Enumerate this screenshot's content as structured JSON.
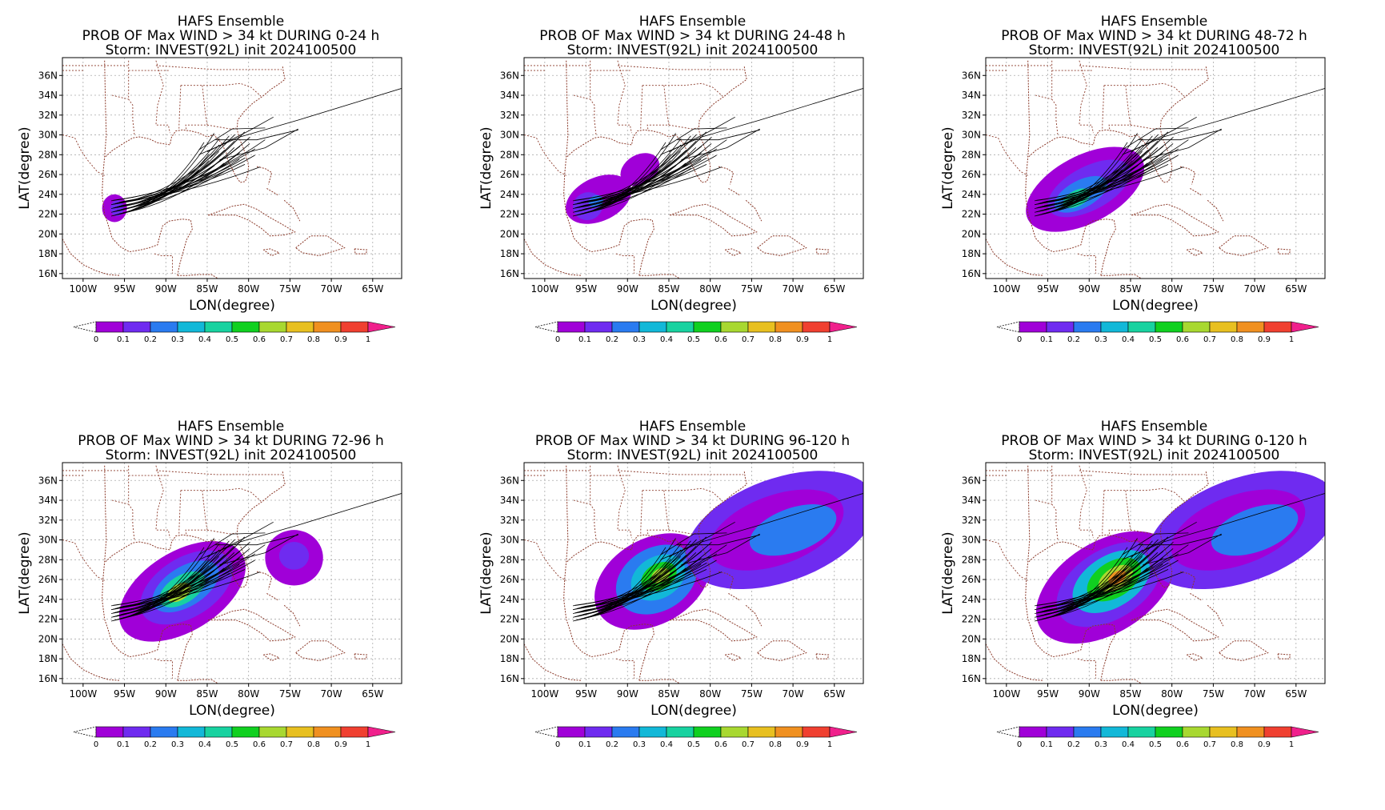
{
  "common": {
    "line1": "HAFS Ensemble",
    "line3": "Storm: INVEST(92L) init 2024100500",
    "xlabel": "LON(degree)",
    "ylabel": "LAT(degree)",
    "lon_ticks": [
      "100W",
      "95W",
      "90W",
      "85W",
      "80W",
      "75W",
      "70W",
      "65W"
    ],
    "lat_ticks": [
      "36N",
      "34N",
      "32N",
      "30N",
      "28N",
      "26N",
      "24N",
      "22N",
      "20N",
      "18N",
      "16N"
    ],
    "colorbar_labels": [
      "0",
      "0.1",
      "0.2",
      "0.3",
      "0.4",
      "0.5",
      "0.6",
      "0.7",
      "0.8",
      "0.9",
      "1"
    ],
    "colorbar_colors": [
      "#a000d8",
      "#6f2bf0",
      "#2a7bf0",
      "#12b8d8",
      "#18d2a0",
      "#10d020",
      "#a8d830",
      "#e8c020",
      "#f09020",
      "#f04030"
    ],
    "colorbar_high": "#f0208c"
  },
  "panels": [
    {
      "line2": "PROB OF Max WIND > 34 kt DURING  0-24 h",
      "stage": 0
    },
    {
      "line2": "PROB OF Max WIND > 34 kt DURING 24-48 h",
      "stage": 1
    },
    {
      "line2": "PROB OF Max WIND > 34 kt DURING 48-72 h",
      "stage": 2
    },
    {
      "line2": "PROB OF Max WIND > 34 kt DURING 72-96 h",
      "stage": 3
    },
    {
      "line2": "PROB OF Max WIND > 34 kt DURING 96-120 h",
      "stage": 4
    },
    {
      "line2": "PROB OF Max WIND > 34 kt DURING 0-120 h",
      "stage": 5
    }
  ]
}
